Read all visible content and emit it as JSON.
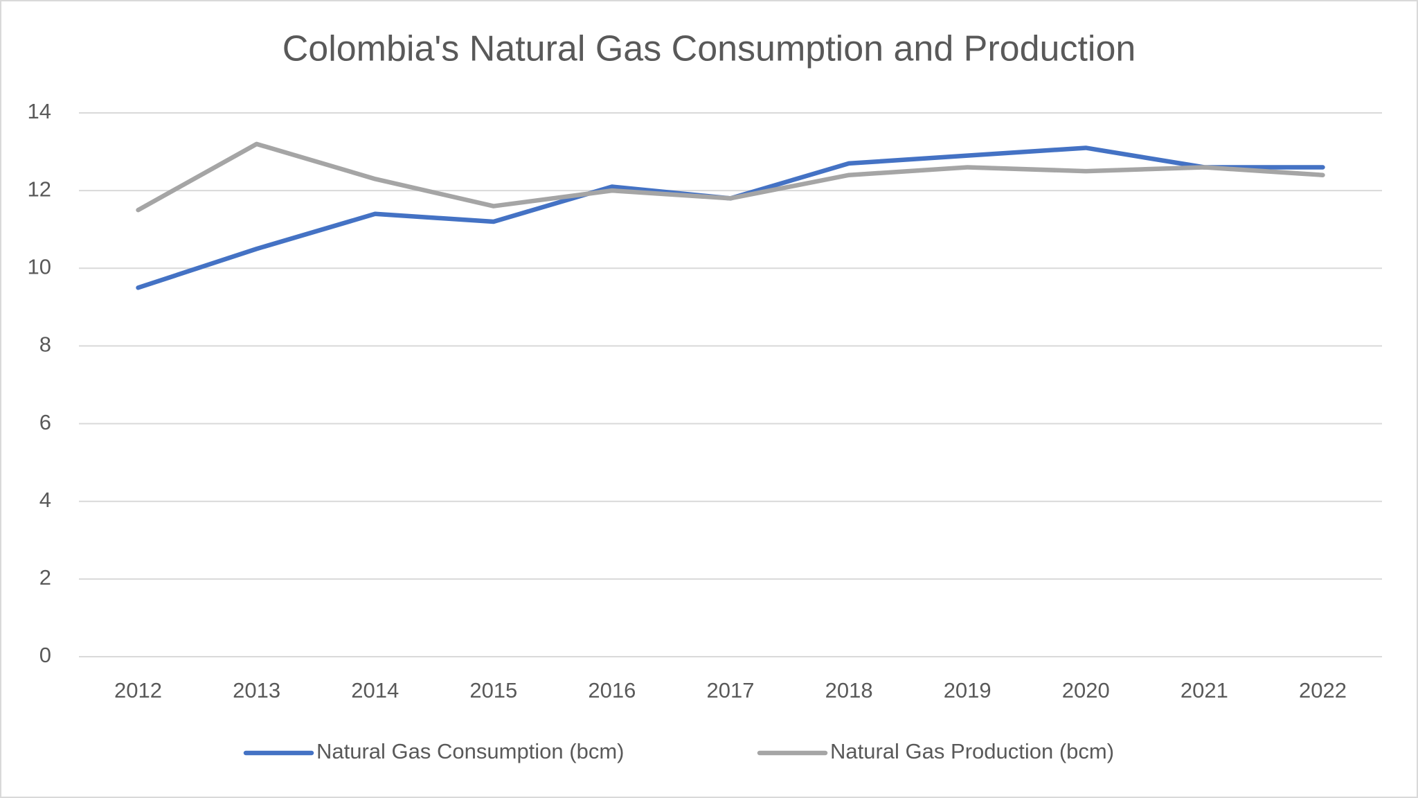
{
  "chart_data": {
    "type": "line",
    "title": "Colombia's Natural Gas Consumption and Production",
    "categories": [
      "2012",
      "2013",
      "2014",
      "2015",
      "2016",
      "2017",
      "2018",
      "2019",
      "2020",
      "2021",
      "2022"
    ],
    "series": [
      {
        "name": "Natural Gas Consumption (bcm)",
        "color": "#4472c4",
        "values": [
          9.5,
          10.5,
          11.4,
          11.2,
          12.1,
          11.8,
          12.7,
          12.9,
          13.1,
          12.6,
          12.6
        ]
      },
      {
        "name": "Natural Gas Production (bcm)",
        "color": "#a5a5a5",
        "values": [
          11.5,
          13.2,
          12.3,
          11.6,
          12.0,
          11.8,
          12.4,
          12.6,
          12.5,
          12.6,
          12.4
        ]
      }
    ],
    "ylim": [
      0,
      14
    ],
    "yticks": [
      0,
      2,
      4,
      6,
      8,
      10,
      12,
      14
    ],
    "grid": true,
    "legend": "bottom"
  }
}
